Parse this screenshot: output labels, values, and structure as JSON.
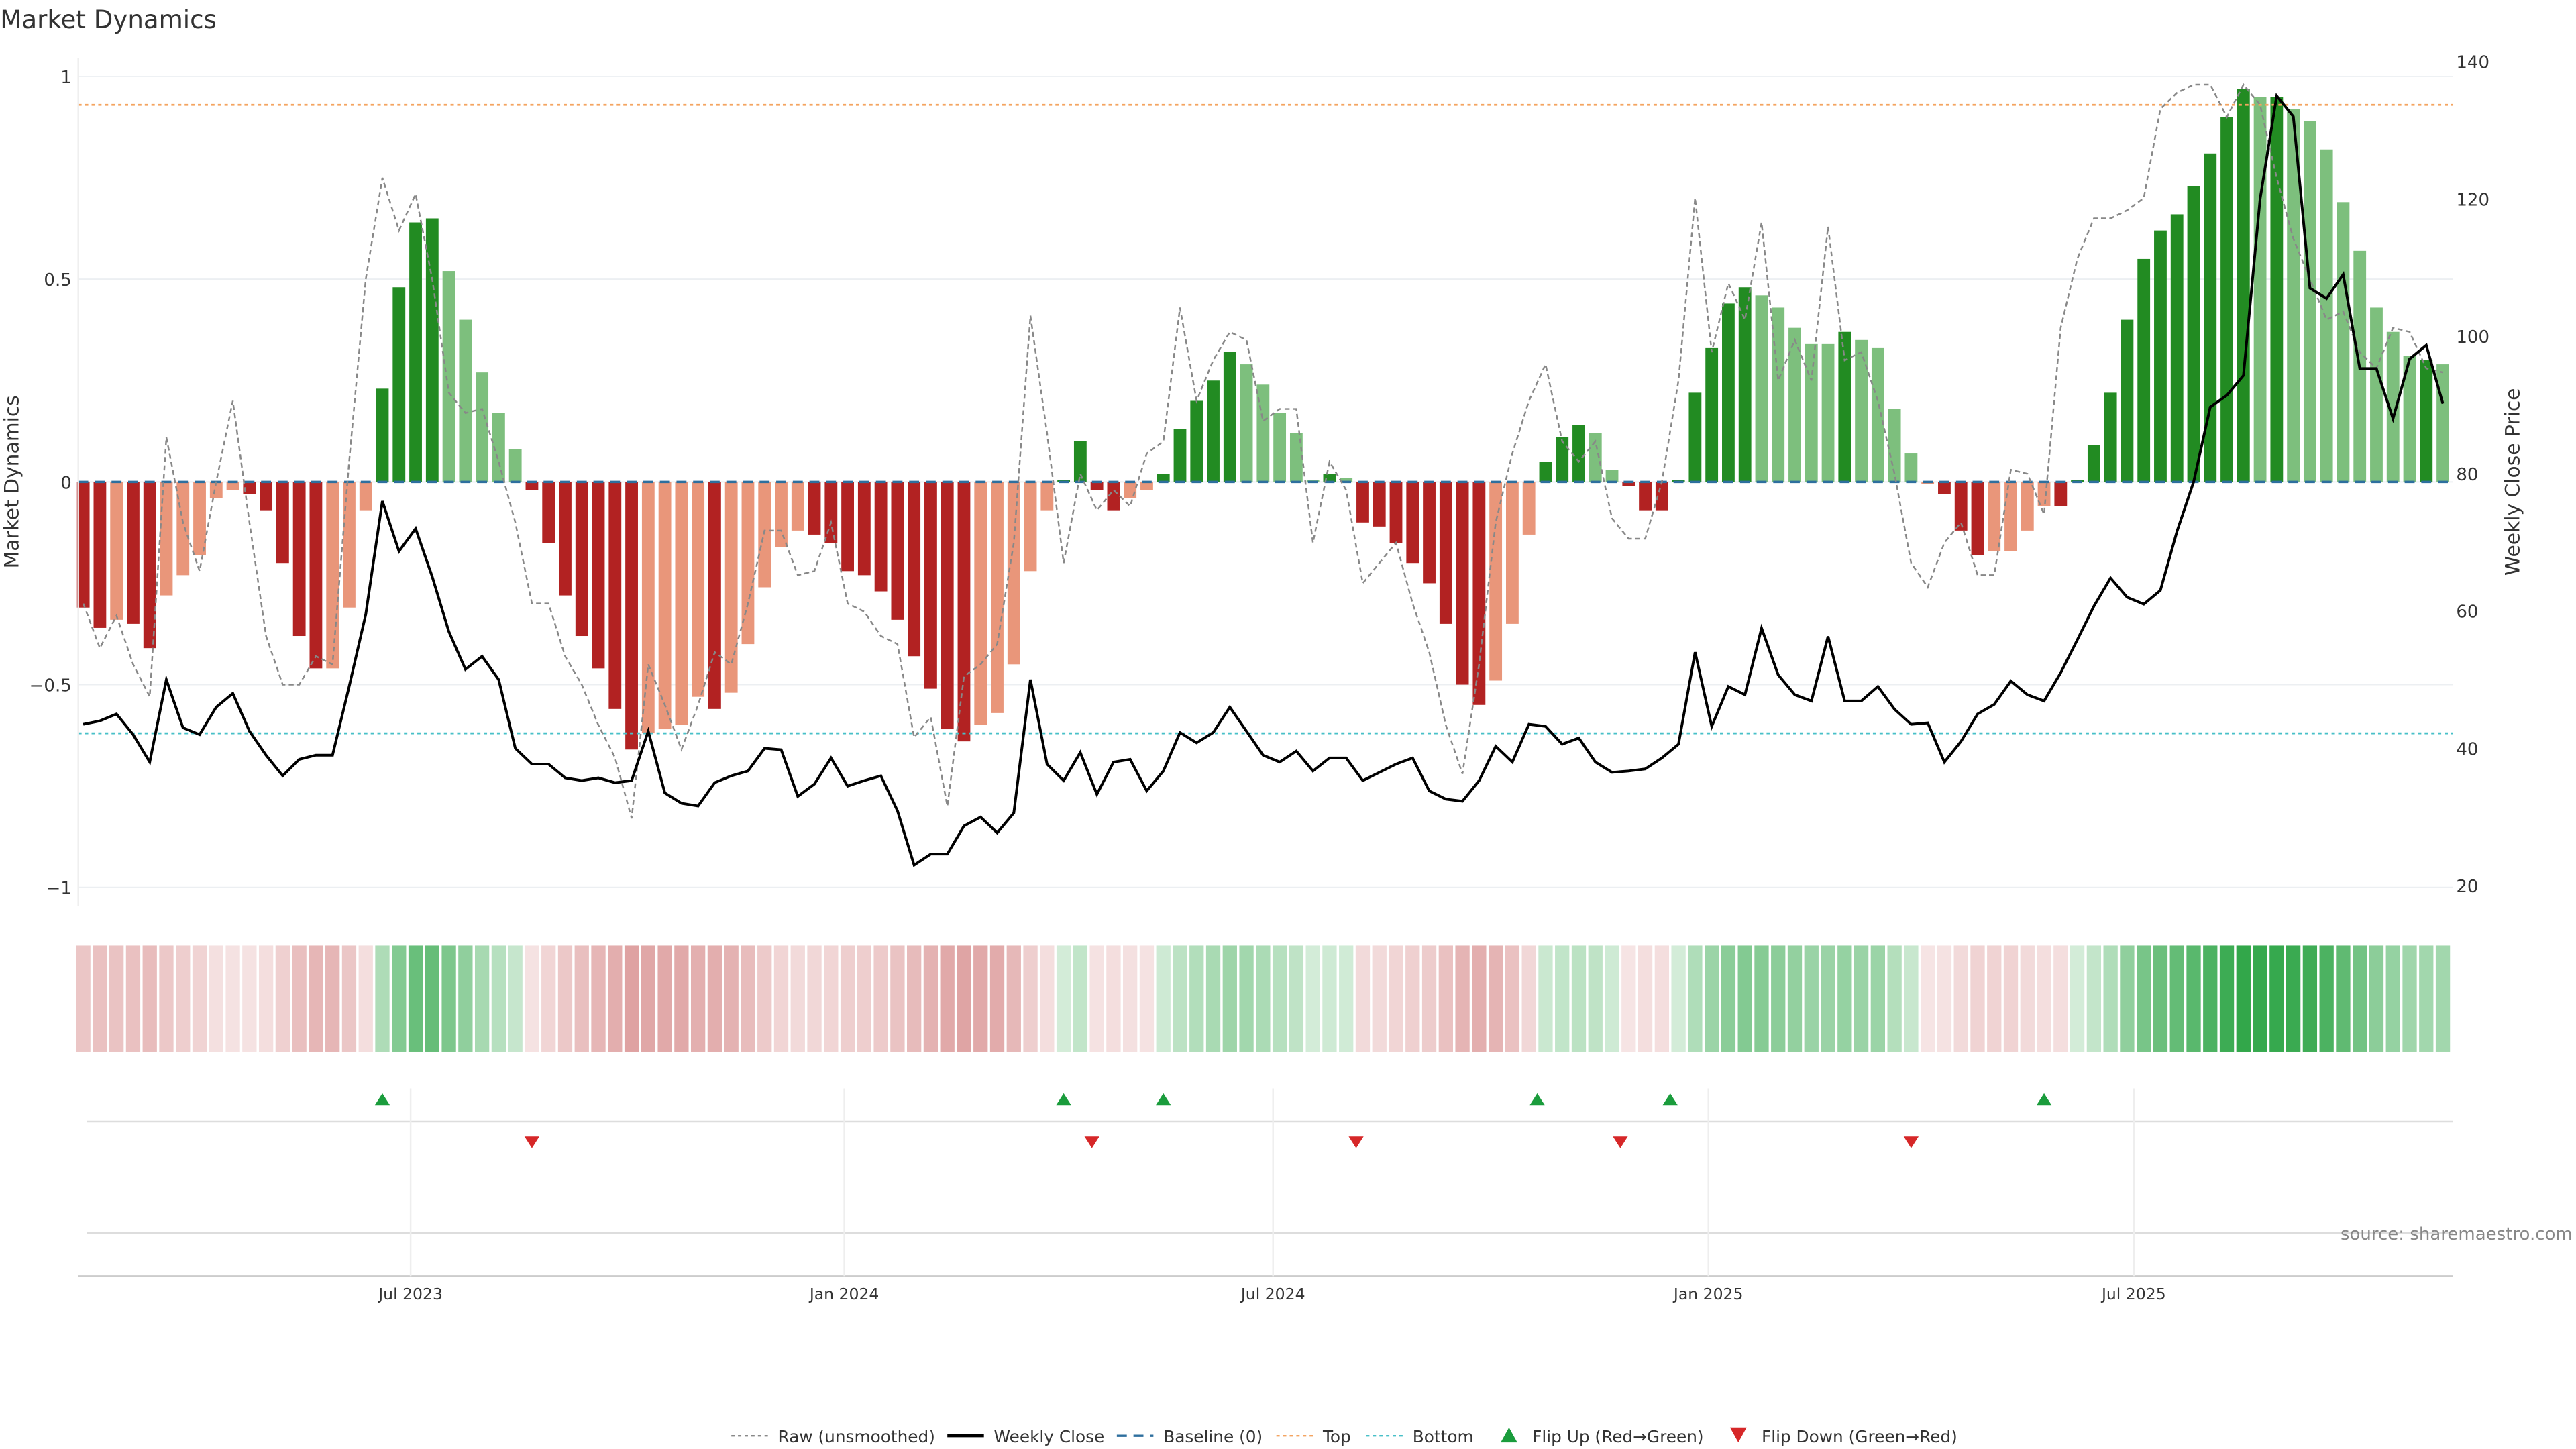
{
  "chart_data": {
    "type": "bar",
    "title": "Market Dynamics",
    "ylabel": "Market Dynamics",
    "ylabel_right": "Weekly Close Price",
    "ylim": [
      -1.05,
      1.05
    ],
    "ylim_right": [
      20,
      140
    ],
    "yticks": [
      1,
      0.5,
      0,
      -0.5,
      -1
    ],
    "yticks_labels": [
      "1",
      "0.5",
      "0",
      "−0.5",
      "−1"
    ],
    "yticks_right": [
      140,
      120,
      100,
      80,
      60,
      40,
      20
    ],
    "xticks": [
      {
        "index": 19.7,
        "label": "Jul 2023"
      },
      {
        "index": 45.8,
        "label": "Jan 2024"
      },
      {
        "index": 71.6,
        "label": "Jul 2024"
      },
      {
        "index": 97.8,
        "label": "Jan 2025"
      },
      {
        "index": 123.4,
        "label": "Jul 2025"
      }
    ],
    "top_level": 0.93,
    "bottom_level": -0.62,
    "smoothed": [
      -0.31,
      -0.36,
      -0.34,
      -0.35,
      -0.41,
      -0.28,
      -0.23,
      -0.18,
      -0.04,
      -0.02,
      -0.03,
      -0.07,
      -0.2,
      -0.38,
      -0.46,
      -0.46,
      -0.31,
      -0.07,
      0.23,
      0.48,
      0.64,
      0.65,
      0.52,
      0.4,
      0.27,
      0.17,
      0.08,
      -0.02,
      -0.15,
      -0.28,
      -0.38,
      -0.46,
      -0.56,
      -0.66,
      -0.62,
      -0.61,
      -0.6,
      -0.53,
      -0.56,
      -0.52,
      -0.4,
      -0.26,
      -0.16,
      -0.12,
      -0.13,
      -0.15,
      -0.22,
      -0.23,
      -0.27,
      -0.34,
      -0.43,
      -0.51,
      -0.61,
      -0.64,
      -0.6,
      -0.57,
      -0.45,
      -0.22,
      -0.07,
      0.005,
      0.1,
      -0.02,
      -0.07,
      -0.04,
      -0.02,
      0.02,
      0.13,
      0.2,
      0.25,
      0.32,
      0.29,
      0.24,
      0.17,
      0.12,
      0.005,
      0.02,
      0.01,
      -0.1,
      -0.11,
      -0.15,
      -0.2,
      -0.25,
      -0.35,
      -0.5,
      -0.55,
      -0.49,
      -0.35,
      -0.13,
      0.05,
      0.11,
      0.14,
      0.12,
      0.03,
      -0.01,
      -0.07,
      -0.07,
      0.005,
      0.22,
      0.33,
      0.44,
      0.48,
      0.46,
      0.43,
      0.38,
      0.34,
      0.34,
      0.37,
      0.35,
      0.33,
      0.18,
      0.07,
      -0.005,
      -0.03,
      -0.12,
      -0.18,
      -0.17,
      -0.17,
      -0.12,
      -0.06,
      -0.06,
      0.005,
      0.09,
      0.22,
      0.4,
      0.55,
      0.62,
      0.66,
      0.73,
      0.81,
      0.9,
      0.97,
      0.95,
      0.95,
      0.92,
      0.89,
      0.82,
      0.69,
      0.57,
      0.43,
      0.37,
      0.31,
      0.3,
      0.29
    ],
    "bar_shade": [
      1,
      1,
      0,
      1,
      1,
      0,
      0,
      0,
      0,
      0,
      1,
      1,
      1,
      1,
      1,
      0,
      0,
      0,
      1,
      1,
      1,
      1,
      0,
      0,
      0,
      0,
      0,
      1,
      1,
      1,
      1,
      1,
      1,
      1,
      0,
      0,
      0,
      0,
      1,
      0,
      0,
      0,
      0,
      0,
      1,
      1,
      1,
      1,
      1,
      1,
      1,
      1,
      1,
      1,
      0,
      0,
      0,
      0,
      0,
      1,
      1,
      1,
      1,
      0,
      0,
      1,
      1,
      1,
      1,
      1,
      0,
      0,
      0,
      0,
      0,
      1,
      0,
      1,
      1,
      1,
      1,
      1,
      1,
      1,
      1,
      0,
      0,
      0,
      1,
      1,
      1,
      0,
      0,
      1,
      1,
      1,
      1,
      1,
      1,
      1,
      1,
      0,
      0,
      0,
      0,
      0,
      1,
      0,
      0,
      0,
      0,
      0,
      1,
      1,
      1,
      0,
      0,
      0,
      0,
      1,
      1,
      1,
      1,
      1,
      1,
      1,
      1,
      1,
      1,
      1,
      1,
      0,
      1,
      0,
      0,
      0,
      0,
      0,
      0,
      0,
      0,
      1,
      0
    ],
    "raw": [
      -0.3,
      -0.41,
      -0.33,
      -0.45,
      -0.53,
      0.11,
      -0.1,
      -0.22,
      0.0,
      0.2,
      -0.1,
      -0.38,
      -0.5,
      -0.5,
      -0.43,
      -0.45,
      0.05,
      0.5,
      0.75,
      0.62,
      0.71,
      0.5,
      0.22,
      0.17,
      0.18,
      0.05,
      -0.1,
      -0.3,
      -0.3,
      -0.43,
      -0.5,
      -0.6,
      -0.68,
      -0.83,
      -0.45,
      -0.55,
      -0.66,
      -0.55,
      -0.42,
      -0.45,
      -0.3,
      -0.12,
      -0.12,
      -0.23,
      -0.22,
      -0.1,
      -0.3,
      -0.32,
      -0.38,
      -0.4,
      -0.63,
      -0.58,
      -0.8,
      -0.48,
      -0.45,
      -0.4,
      -0.15,
      0.41,
      0.12,
      -0.2,
      0.02,
      -0.07,
      -0.02,
      -0.06,
      0.07,
      0.1,
      0.43,
      0.2,
      0.3,
      0.37,
      0.35,
      0.15,
      0.18,
      0.18,
      -0.15,
      0.05,
      -0.02,
      -0.25,
      -0.2,
      -0.15,
      -0.3,
      -0.42,
      -0.6,
      -0.72,
      -0.45,
      -0.1,
      0.07,
      0.2,
      0.29,
      0.1,
      0.05,
      0.1,
      -0.09,
      -0.14,
      -0.14,
      0.0,
      0.25,
      0.7,
      0.32,
      0.49,
      0.4,
      0.64,
      0.25,
      0.35,
      0.25,
      0.63,
      0.3,
      0.32,
      0.2,
      0.02,
      -0.2,
      -0.26,
      -0.15,
      -0.1,
      -0.23,
      -0.23,
      0.03,
      0.02,
      -0.08,
      0.38,
      0.55,
      0.65,
      0.65,
      0.67,
      0.7,
      0.92,
      0.96,
      0.98,
      0.98,
      0.9,
      0.98,
      0.93,
      0.75,
      0.6,
      0.5,
      0.4,
      0.42,
      0.32,
      0.28,
      0.38,
      0.37,
      0.28,
      0.27
    ],
    "weekly_close": [
      43.5,
      44,
      45,
      42,
      38,
      50,
      43,
      42,
      46,
      48,
      42.5,
      39,
      36,
      38.4,
      39,
      39,
      49,
      59.5,
      76,
      68.7,
      72,
      65,
      57,
      51.5,
      53.4,
      50,
      40,
      37.7,
      37.7,
      35.7,
      35.3,
      35.7,
      35,
      35.3,
      42.5,
      33.5,
      32,
      31.6,
      35,
      36,
      36.7,
      40,
      39.8,
      33,
      34.8,
      38.6,
      34.5,
      35.3,
      36,
      30.9,
      23,
      24.6,
      24.6,
      28.7,
      30,
      27.7,
      30.6,
      50,
      37.7,
      35.3,
      39.4,
      33.3,
      38,
      38.4,
      33.8,
      36.7,
      42.3,
      40.8,
      42.3,
      46,
      42.5,
      39,
      38,
      39.6,
      36.7,
      38.6,
      38.6,
      35.3,
      36.5,
      37.7,
      38.6,
      33.8,
      32.6,
      32.3,
      35.3,
      40.3,
      38,
      43.5,
      43.2,
      40.6,
      41.5,
      38,
      36.5,
      36.7,
      37,
      38.6,
      40.6,
      54,
      43.2,
      49,
      47.8,
      57.5,
      50.7,
      47.8,
      46.9,
      56.3,
      46.9,
      46.9,
      49,
      45.7,
      43.5,
      43.7,
      38,
      41,
      45,
      46.4,
      49.8,
      47.8,
      46.9,
      51,
      55.8,
      60.7,
      64.8,
      62,
      61,
      63,
      71.6,
      78.8,
      89.7,
      91.4,
      94.3,
      120,
      135,
      132,
      107,
      105.5,
      109,
      95.3,
      95.3,
      88,
      96.7,
      98.7,
      90.2
    ],
    "flip_up": [
      18,
      59,
      65,
      87.5,
      95.5,
      118
    ],
    "flip_down": [
      27,
      60.7,
      76.6,
      92.5,
      110
    ],
    "legend": [
      {
        "key": "raw",
        "label": "Raw (unsmoothed)"
      },
      {
        "key": "close",
        "label": "Weekly Close"
      },
      {
        "key": "baseline",
        "label": "Baseline (0)"
      },
      {
        "key": "top",
        "label": "Top"
      },
      {
        "key": "bottom",
        "label": "Bottom"
      },
      {
        "key": "flipup",
        "label": "Flip Up (Red→Green)"
      },
      {
        "key": "flipdown",
        "label": "Flip Down (Green→Red)"
      }
    ],
    "legend_placement": "bottom-center",
    "source": "source: sharemaestro.com",
    "colors": {
      "dark_green": "#228b22",
      "light_green": "#7dbf7d",
      "dark_red": "#b22222",
      "light_red": "#e9967a",
      "baseline": "#2e6f9e",
      "top": "#f4a460",
      "bottom": "#48c0c8",
      "raw": "#888888",
      "close": "#000000",
      "flip_up": "#1a9c3c",
      "flip_down": "#d62728"
    }
  }
}
